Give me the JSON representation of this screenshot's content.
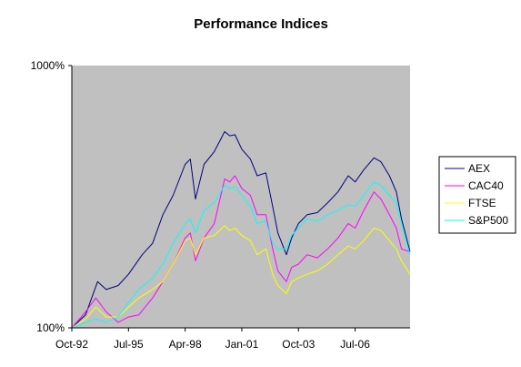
{
  "chart_data": {
    "type": "line",
    "title": "Performance Indices",
    "xlabel": "",
    "ylabel": "",
    "y_scale": "log",
    "ylim": [
      100,
      1000
    ],
    "y_ticks": [
      "100%",
      "1000%"
    ],
    "x_range": [
      "1992-10",
      "2009-03"
    ],
    "x_ticks": [
      {
        "label": "Oct-92",
        "date": "1992-10"
      },
      {
        "label": "Jul-95",
        "date": "1995-07"
      },
      {
        "label": "Apr-98",
        "date": "1998-04"
      },
      {
        "label": "Jan-01",
        "date": "2001-01"
      },
      {
        "label": "Oct-03",
        "date": "2003-10"
      },
      {
        "label": "Jul-06",
        "date": "2006-07"
      }
    ],
    "grid": false,
    "plot_background": "#c0c0c0",
    "legend_position": "right",
    "series": [
      {
        "name": "AEX",
        "color": "#000080",
        "points": [
          [
            "1992-10",
            100
          ],
          [
            "1993-06",
            112
          ],
          [
            "1994-01",
            150
          ],
          [
            "1994-06",
            140
          ],
          [
            "1995-01",
            145
          ],
          [
            "1995-07",
            160
          ],
          [
            "1996-03",
            190
          ],
          [
            "1996-09",
            210
          ],
          [
            "1997-03",
            270
          ],
          [
            "1997-09",
            320
          ],
          [
            "1998-04",
            420
          ],
          [
            "1998-07",
            440
          ],
          [
            "1998-10",
            310
          ],
          [
            "1999-03",
            420
          ],
          [
            "1999-09",
            470
          ],
          [
            "2000-03",
            560
          ],
          [
            "2000-06",
            540
          ],
          [
            "2000-09",
            545
          ],
          [
            "2001-01",
            480
          ],
          [
            "2001-06",
            440
          ],
          [
            "2001-10",
            380
          ],
          [
            "2002-03",
            390
          ],
          [
            "2002-07",
            290
          ],
          [
            "2002-10",
            230
          ],
          [
            "2003-03",
            190
          ],
          [
            "2003-06",
            220
          ],
          [
            "2003-10",
            250
          ],
          [
            "2004-03",
            270
          ],
          [
            "2004-09",
            275
          ],
          [
            "2005-03",
            300
          ],
          [
            "2005-09",
            330
          ],
          [
            "2006-03",
            380
          ],
          [
            "2006-07",
            360
          ],
          [
            "2006-12",
            400
          ],
          [
            "2007-06",
            445
          ],
          [
            "2007-10",
            430
          ],
          [
            "2008-03",
            380
          ],
          [
            "2008-07",
            330
          ],
          [
            "2008-10",
            260
          ],
          [
            "2009-03",
            195
          ]
        ]
      },
      {
        "name": "CAC40",
        "color": "#ff00ff",
        "points": [
          [
            "1992-10",
            100
          ],
          [
            "1993-06",
            115
          ],
          [
            "1993-12",
            130
          ],
          [
            "1994-06",
            115
          ],
          [
            "1995-01",
            105
          ],
          [
            "1995-07",
            110
          ],
          [
            "1996-01",
            112
          ],
          [
            "1996-09",
            130
          ],
          [
            "1997-03",
            150
          ],
          [
            "1997-09",
            175
          ],
          [
            "1998-04",
            220
          ],
          [
            "1998-07",
            230
          ],
          [
            "1998-10",
            180
          ],
          [
            "1999-03",
            220
          ],
          [
            "1999-09",
            250
          ],
          [
            "2000-03",
            370
          ],
          [
            "2000-06",
            360
          ],
          [
            "2000-09",
            380
          ],
          [
            "2001-01",
            340
          ],
          [
            "2001-06",
            320
          ],
          [
            "2001-10",
            270
          ],
          [
            "2002-03",
            270
          ],
          [
            "2002-07",
            200
          ],
          [
            "2002-10",
            165
          ],
          [
            "2003-03",
            150
          ],
          [
            "2003-06",
            170
          ],
          [
            "2003-10",
            175
          ],
          [
            "2004-03",
            190
          ],
          [
            "2004-09",
            185
          ],
          [
            "2005-03",
            200
          ],
          [
            "2005-09",
            220
          ],
          [
            "2006-03",
            250
          ],
          [
            "2006-07",
            240
          ],
          [
            "2006-12",
            280
          ],
          [
            "2007-06",
            330
          ],
          [
            "2007-10",
            310
          ],
          [
            "2008-03",
            270
          ],
          [
            "2008-07",
            240
          ],
          [
            "2008-10",
            200
          ],
          [
            "2009-03",
            195
          ]
        ]
      },
      {
        "name": "FTSE",
        "color": "#ffff00",
        "points": [
          [
            "1992-10",
            100
          ],
          [
            "1993-06",
            108
          ],
          [
            "1993-12",
            120
          ],
          [
            "1994-06",
            110
          ],
          [
            "1995-01",
            110
          ],
          [
            "1995-07",
            120
          ],
          [
            "1996-01",
            130
          ],
          [
            "1996-09",
            140
          ],
          [
            "1997-03",
            150
          ],
          [
            "1997-09",
            175
          ],
          [
            "1998-04",
            215
          ],
          [
            "1998-07",
            220
          ],
          [
            "1998-10",
            190
          ],
          [
            "1999-03",
            220
          ],
          [
            "1999-09",
            225
          ],
          [
            "2000-03",
            245
          ],
          [
            "2000-06",
            235
          ],
          [
            "2000-09",
            240
          ],
          [
            "2001-01",
            225
          ],
          [
            "2001-06",
            215
          ],
          [
            "2001-10",
            190
          ],
          [
            "2002-03",
            200
          ],
          [
            "2002-07",
            160
          ],
          [
            "2002-10",
            145
          ],
          [
            "2003-03",
            135
          ],
          [
            "2003-06",
            150
          ],
          [
            "2003-10",
            155
          ],
          [
            "2004-03",
            160
          ],
          [
            "2004-09",
            165
          ],
          [
            "2005-03",
            175
          ],
          [
            "2005-09",
            190
          ],
          [
            "2006-03",
            205
          ],
          [
            "2006-07",
            200
          ],
          [
            "2006-12",
            215
          ],
          [
            "2007-06",
            240
          ],
          [
            "2007-10",
            235
          ],
          [
            "2008-03",
            215
          ],
          [
            "2008-07",
            200
          ],
          [
            "2008-10",
            180
          ],
          [
            "2009-03",
            160
          ]
        ]
      },
      {
        "name": "S&P500",
        "color": "#00ffff",
        "points": [
          [
            "1992-10",
            100
          ],
          [
            "1993-06",
            105
          ],
          [
            "1993-12",
            108
          ],
          [
            "1994-06",
            105
          ],
          [
            "1995-01",
            110
          ],
          [
            "1995-07",
            125
          ],
          [
            "1996-01",
            140
          ],
          [
            "1996-09",
            155
          ],
          [
            "1997-03",
            175
          ],
          [
            "1997-09",
            210
          ],
          [
            "1998-04",
            250
          ],
          [
            "1998-07",
            260
          ],
          [
            "1998-10",
            230
          ],
          [
            "1999-03",
            280
          ],
          [
            "1999-09",
            300
          ],
          [
            "2000-03",
            350
          ],
          [
            "2000-06",
            340
          ],
          [
            "2000-09",
            345
          ],
          [
            "2001-01",
            320
          ],
          [
            "2001-06",
            290
          ],
          [
            "2001-10",
            250
          ],
          [
            "2002-03",
            255
          ],
          [
            "2002-07",
            210
          ],
          [
            "2002-10",
            200
          ],
          [
            "2003-03",
            200
          ],
          [
            "2003-06",
            225
          ],
          [
            "2003-10",
            240
          ],
          [
            "2004-03",
            260
          ],
          [
            "2004-09",
            255
          ],
          [
            "2005-03",
            270
          ],
          [
            "2005-09",
            280
          ],
          [
            "2006-03",
            295
          ],
          [
            "2006-07",
            290
          ],
          [
            "2006-12",
            320
          ],
          [
            "2007-06",
            360
          ],
          [
            "2007-10",
            350
          ],
          [
            "2008-03",
            320
          ],
          [
            "2008-07",
            300
          ],
          [
            "2008-10",
            250
          ],
          [
            "2009-03",
            190
          ]
        ]
      }
    ]
  }
}
